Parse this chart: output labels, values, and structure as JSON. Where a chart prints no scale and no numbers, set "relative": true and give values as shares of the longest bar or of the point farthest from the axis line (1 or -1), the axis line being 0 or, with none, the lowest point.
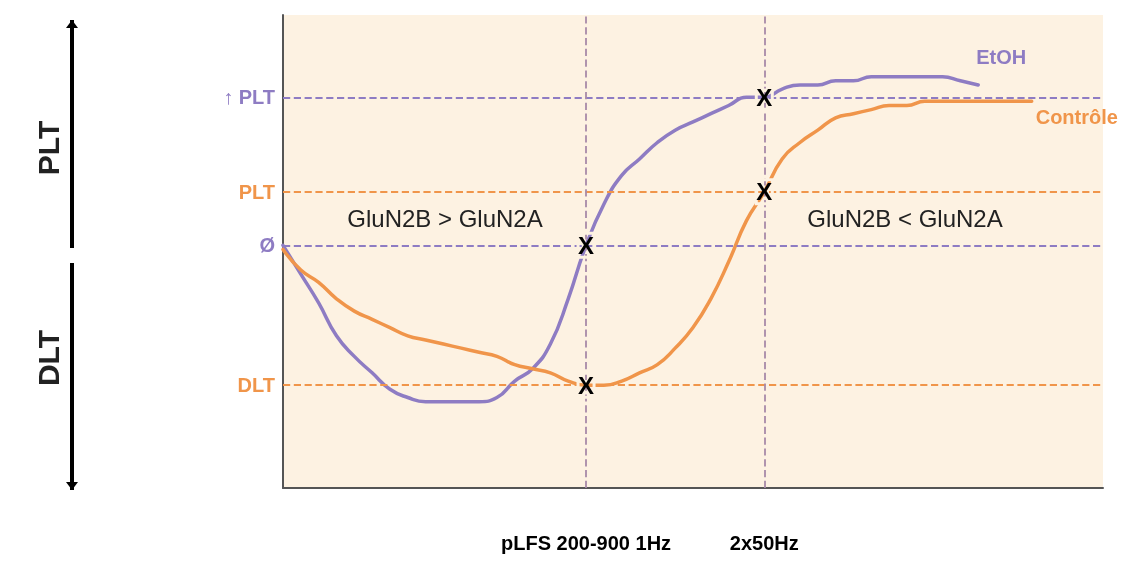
{
  "chart_data": {
    "type": "line",
    "relative": true,
    "categories": [
      null,
      null,
      null,
      null,
      null,
      null,
      null,
      null,
      null,
      null,
      null,
      null,
      null,
      null,
      null,
      null,
      null,
      "pLFS 200-900 1Hz",
      null,
      null,
      null,
      null,
      null,
      null,
      null,
      null,
      null,
      "2x50Hz",
      null,
      null,
      null,
      null,
      null,
      null,
      null,
      null,
      null,
      null,
      null,
      null,
      null,
      null,
      null,
      null,
      null,
      null,
      null
    ],
    "series": [
      {
        "name": "EtOH",
        "color": "#8e7cc3",
        "values": [
          0.59,
          0.52,
          0.45,
          0.37,
          0.32,
          0.28,
          0.24,
          0.22,
          0.21,
          0.21,
          0.21,
          0.21,
          0.22,
          0.26,
          0.29,
          0.35,
          0.46,
          0.59,
          0.69,
          0.76,
          0.8,
          0.84,
          0.87,
          0.89,
          0.91,
          0.93,
          0.95,
          0.95,
          0.97,
          0.98,
          0.98,
          0.99,
          0.99,
          1.0,
          1.0,
          1.0,
          1.0,
          1.0,
          0.99,
          0.98,
          null,
          null,
          null,
          null,
          null,
          null,
          null
        ]
      },
      {
        "name": "Contrôle",
        "color": "#f0954a",
        "values": [
          0.58,
          0.53,
          0.5,
          0.46,
          0.43,
          0.41,
          0.39,
          0.37,
          0.36,
          0.35,
          0.34,
          0.33,
          0.32,
          0.3,
          0.29,
          0.28,
          0.26,
          0.25,
          0.25,
          0.26,
          0.28,
          0.3,
          0.34,
          0.39,
          0.46,
          0.55,
          0.65,
          0.72,
          0.8,
          0.84,
          0.87,
          0.9,
          0.91,
          0.92,
          0.93,
          0.93,
          0.94,
          0.94,
          0.94,
          0.94,
          0.94,
          0.94,
          0.94,
          null,
          null,
          null,
          null
        ]
      }
    ],
    "ref_lines": [
      {
        "axis": "y",
        "value": 0.95,
        "label": "↑ PLT",
        "color": "#8e7cc3",
        "line_style": "dashed"
      },
      {
        "axis": "y",
        "value": 0.72,
        "label": "PLT",
        "color": "#f0954a",
        "line_style": "dashed"
      },
      {
        "axis": "y",
        "value": 0.59,
        "label": "Ø",
        "color": "#8e7cc3",
        "line_style": "dashed"
      },
      {
        "axis": "y",
        "value": 0.25,
        "label": "DLT",
        "color": "#f0954a",
        "line_style": "dashed"
      },
      {
        "axis": "x",
        "value": "pLFS 200-900 1Hz",
        "line_style": "dashed"
      },
      {
        "axis": "x",
        "value": "2x50Hz",
        "line_style": "dashed"
      }
    ],
    "annotations": [
      "PLT",
      "DLT",
      "GluN2B > GluN2A",
      "GluN2B < GluN2A",
      {
        "text": "X",
        "x": "pLFS 200-900 1Hz",
        "y": 0.59
      },
      {
        "text": "X",
        "x": "pLFS 200-900 1Hz",
        "y": 0.25
      },
      {
        "text": "X",
        "x": "2x50Hz",
        "y": 0.95
      },
      {
        "text": "X",
        "x": "2x50Hz",
        "y": 0.72
      }
    ],
    "legend": false,
    "grid": false,
    "marker": "none",
    "line_style": "solid"
  }
}
